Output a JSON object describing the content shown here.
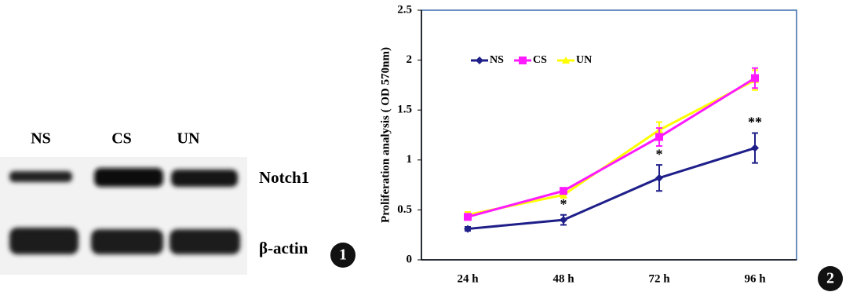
{
  "blot": {
    "lanes": [
      "NS",
      "CS",
      "UN"
    ],
    "proteins": [
      "Notch1",
      "β-actin"
    ],
    "panel": "1"
  },
  "panel": "2",
  "chart_data": {
    "type": "line",
    "y_label": "Proliferation analysis ( OD 570nm)",
    "categories": [
      "24 h",
      "48 h",
      "72 h",
      "96 h"
    ],
    "ylim": [
      0,
      2.5
    ],
    "yticks": [
      0,
      0.5,
      1,
      1.5,
      2,
      2.5
    ],
    "legend": "top-left",
    "series": [
      {
        "name": "NS",
        "color": "#1f1f8a",
        "marker": "diamond",
        "values": [
          0.31,
          0.4,
          0.82,
          1.12
        ],
        "errors": [
          0.02,
          0.05,
          0.13,
          0.15
        ],
        "significance": [
          null,
          "*",
          "*",
          "**"
        ]
      },
      {
        "name": "CS",
        "color": "#ff1aff",
        "marker": "square",
        "values": [
          0.43,
          0.69,
          1.23,
          1.82
        ],
        "errors": [
          0.03,
          0.03,
          0.09,
          0.1
        ]
      },
      {
        "name": "UN",
        "color": "#ffff00",
        "marker": "triangle",
        "values": [
          0.45,
          0.65,
          1.3,
          1.8
        ],
        "errors": [
          0.03,
          0.03,
          0.08,
          0.1
        ]
      }
    ]
  }
}
